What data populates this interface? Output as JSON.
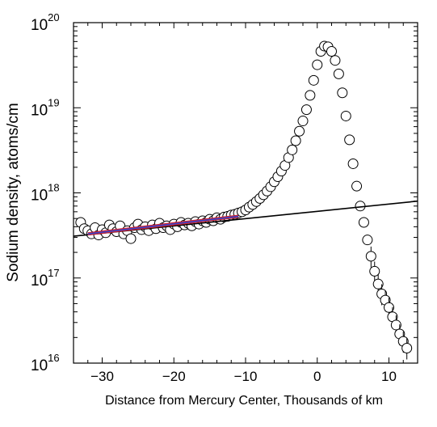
{
  "chart_data": {
    "type": "scatter",
    "title": "",
    "xlabel": "Distance from Mercury Center, Thousands of km",
    "ylabel": "Sodium density, atoms/cm",
    "xlim": [
      -34,
      14
    ],
    "ylim": [
      1e+16,
      1e+20
    ],
    "yscale": "log",
    "grid": false,
    "legend": "none",
    "xticks": [
      -30,
      -20,
      -10,
      0,
      10
    ],
    "yticks": [
      {
        "value": 1e+16,
        "base": "10",
        "exp": "16"
      },
      {
        "value": 1e+17,
        "base": "10",
        "exp": "17"
      },
      {
        "value": 1e+18,
        "base": "10",
        "exp": "18"
      },
      {
        "value": 1e+19,
        "base": "10",
        "exp": "19"
      },
      {
        "value": 1e+20,
        "base": "10",
        "exp": "20"
      }
    ],
    "observations": {
      "marker": "open-circle",
      "x": [
        -33,
        -32.5,
        -32,
        -31.5,
        -31,
        -30.5,
        -30,
        -29.5,
        -29,
        -28.5,
        -28,
        -27.5,
        -27,
        -26.5,
        -26,
        -25.5,
        -25,
        -24.5,
        -24,
        -23.5,
        -23,
        -22.5,
        -22,
        -21.5,
        -21,
        -20.5,
        -20,
        -19.5,
        -19,
        -18.5,
        -18,
        -17.5,
        -17,
        -16.5,
        -16,
        -15.5,
        -15,
        -14.5,
        -14,
        -13.5,
        -13,
        -12.5,
        -12,
        -11.5,
        -11,
        -10.5,
        -10,
        -9.5,
        -9,
        -8.5,
        -8,
        -7.5,
        -7,
        -6.5,
        -6,
        -5.5,
        -5,
        -4.5,
        -4,
        -3.5,
        -3,
        -2.5,
        -2,
        -1.5,
        -1,
        -0.5,
        0,
        0.5,
        1,
        1.5,
        2,
        2.5,
        3,
        3.5,
        4,
        4.5,
        5,
        5.5,
        6,
        6.5,
        7,
        7.5,
        8,
        8.5,
        9,
        9.5,
        10,
        10.5,
        11,
        11.5,
        12,
        12.5
      ],
      "y": [
        4.5e+17,
        3.8e+17,
        3.6e+17,
        3.3e+17,
        3.9e+17,
        3.2e+17,
        3.7e+17,
        3.4e+17,
        4.2e+17,
        3.8e+17,
        3.5e+17,
        4.1e+17,
        3.3e+17,
        3.6e+17,
        2.9e+17,
        3.9e+17,
        4.3e+17,
        3.7e+17,
        4e+17,
        3.6e+17,
        4.2e+17,
        3.8e+17,
        4.4e+17,
        3.9e+17,
        4.1e+17,
        3.7e+17,
        4.3e+17,
        4e+17,
        4.5e+17,
        4.2e+17,
        4.4e+17,
        4.1e+17,
        4.6e+17,
        4.3e+17,
        4.7e+17,
        4.5e+17,
        4.9e+17,
        4.7e+17,
        5.1e+17,
        4.9e+17,
        5.2e+17,
        5.3e+17,
        5.5e+17,
        5.6e+17,
        5.8e+17,
        6e+17,
        6.3e+17,
        6.8e+17,
        7.3e+17,
        7.9e+17,
        8.6e+17,
        9.5e+17,
        1.05e+18,
        1.18e+18,
        1.35e+18,
        1.55e+18,
        1.8e+18,
        2.1e+18,
        2.6e+18,
        3.2e+18,
        4.1e+18,
        5.3e+18,
        7e+18,
        9.5e+18,
        1.4e+19,
        2.1e+19,
        3.2e+19,
        4.6e+19,
        5.3e+19,
        5.2e+19,
        4.6e+19,
        3.6e+19,
        2.5e+19,
        1.5e+19,
        8e+18,
        4.2e+18,
        2.2e+18,
        1.2e+18,
        7e+17,
        4.5e+17,
        2.8e+17,
        1.8e+17,
        1.2e+17,
        8.5e+16,
        6.5e+16,
        5.5e+16,
        4.5e+16,
        3.5e+16,
        2.8e+16,
        2.2e+16,
        1.8e+16,
        1.5e+16
      ]
    },
    "fit_line": {
      "x": [
        -34,
        14
      ],
      "y": [
        3.1e+17,
        8e+17
      ],
      "color": "#000000"
    },
    "fit_segment": {
      "x": [
        -32,
        -11
      ],
      "y": [
        3.3e+17,
        5.3e+17
      ],
      "color": "#cc2233",
      "overlay_color": "#3344cc"
    }
  }
}
